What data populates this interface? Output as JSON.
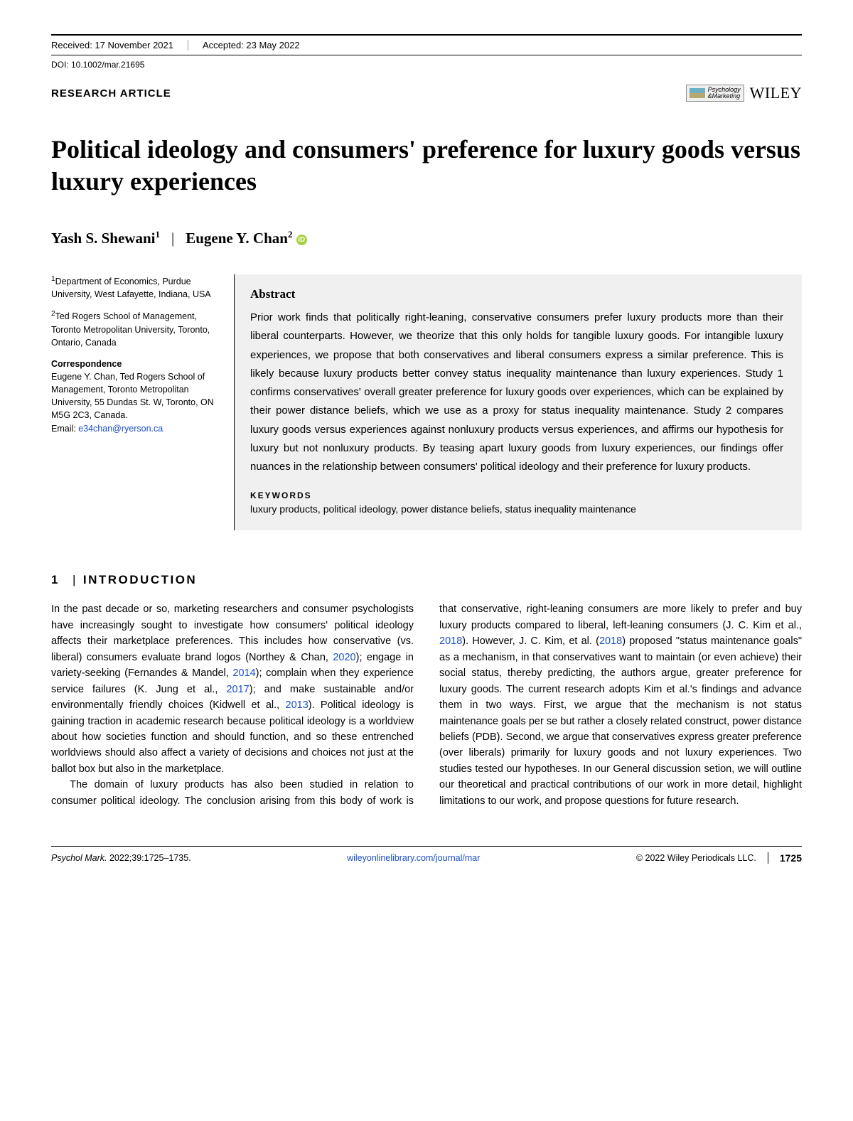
{
  "header": {
    "received": "Received: 17 November 2021",
    "accepted": "Accepted: 23 May 2022",
    "doi": "DOI: 10.1002/mar.21695"
  },
  "articleType": "RESEARCH ARTICLE",
  "journal": {
    "name_line1": "Psychology",
    "name_line2": "&Marketing",
    "publisher": "WILEY"
  },
  "title": "Political ideology and consumers' preference for luxury goods versus luxury experiences",
  "authors": {
    "a1_name": "Yash S. Shewani",
    "a1_affil": "1",
    "a2_name": "Eugene Y. Chan",
    "a2_affil": "2"
  },
  "affiliations": {
    "af1": "Department of Economics, Purdue University, West Lafayette, Indiana, USA",
    "af2": "Ted Rogers School of Management, Toronto Metropolitan University, Toronto, Ontario, Canada"
  },
  "correspondence": {
    "heading": "Correspondence",
    "text": "Eugene Y. Chan, Ted Rogers School of Management, Toronto Metropolitan University, 55 Dundas St. W, Toronto, ON M5G 2C3, Canada.",
    "email_label": "Email: ",
    "email": "e34chan@ryerson.ca"
  },
  "abstract": {
    "heading": "Abstract",
    "text": "Prior work finds that politically right-leaning, conservative consumers prefer luxury products more than their liberal counterparts. However, we theorize that this only holds for tangible luxury goods. For intangible luxury experiences, we propose that both conservatives and liberal consumers express a similar preference. This is likely because luxury products better convey status inequality maintenance than luxury experiences. Study 1 confirms conservatives' overall greater preference for luxury goods over experiences, which can be explained by their power distance beliefs, which we use as a proxy for status inequality maintenance. Study 2 compares luxury goods versus experiences against nonluxury products versus experiences, and affirms our hypothesis for luxury but not nonluxury products. By teasing apart luxury goods from luxury experiences, our findings offer nuances in the relationship between consumers' political ideology and their preference for luxury products.",
    "kw_heading": "KEYWORDS",
    "keywords": "luxury products, political ideology, power distance beliefs, status inequality maintenance"
  },
  "section": {
    "num": "1",
    "title": "INTRODUCTION",
    "p1_a": "In the past decade or so, marketing researchers and consumer psychologists have increasingly sought to investigate how consumers' political ideology affects their marketplace preferences. This includes how conservative (vs. liberal) consumers evaluate brand logos (Northey & Chan, ",
    "ref1": "2020",
    "p1_b": "); engage in variety-seeking (Fernandes & Mandel, ",
    "ref2": "2014",
    "p1_c": "); complain when they experience service failures (K. Jung et al., ",
    "ref3": "2017",
    "p1_d": "); and make sustainable and/or environmentally friendly choices (Kidwell et al., ",
    "ref4": "2013",
    "p1_e": "). Political ideology is gaining traction in academic research because political ideology is a worldview about how societies function and should function, and so these entrenched worldviews should also affect a variety of decisions and choices not just at the ballot box but also in the marketplace.",
    "p2_a": "The domain of luxury products has also been studied in relation to consumer political ideology. The conclusion arising from this body of work is that conservative, right-leaning consumers are more likely to prefer and buy luxury products compared to liberal, left-leaning consumers (J. C. Kim et al., ",
    "ref5": "2018",
    "p2_b": "). However, J. C. Kim, et al. (",
    "ref6": "2018",
    "p2_c": ") proposed \"status maintenance goals\" as a mechanism, in that conservatives want to maintain (or even achieve) their social status, thereby predicting, the authors argue, greater preference for luxury goods. The current research adopts Kim et al.'s findings and advance them in two ways. First, we argue that the mechanism is not status maintenance goals per se but rather a closely related construct, power distance beliefs (PDB). Second, we argue that conservatives express greater preference (over liberals) primarily for luxury goods and not luxury experiences. Two studies tested our hypotheses. In our General discussion setion, we will outline our theoretical and practical contributions of our work in more detail, highlight limitations to our work, and propose questions for future research."
  },
  "footer": {
    "citation_journal": "Psychol Mark.",
    "citation_rest": " 2022;39:1725–1735.",
    "url": "wileyonlinelibrary.com/journal/mar",
    "copyright": "© 2022 Wiley Periodicals LLC.",
    "page": "1725"
  }
}
